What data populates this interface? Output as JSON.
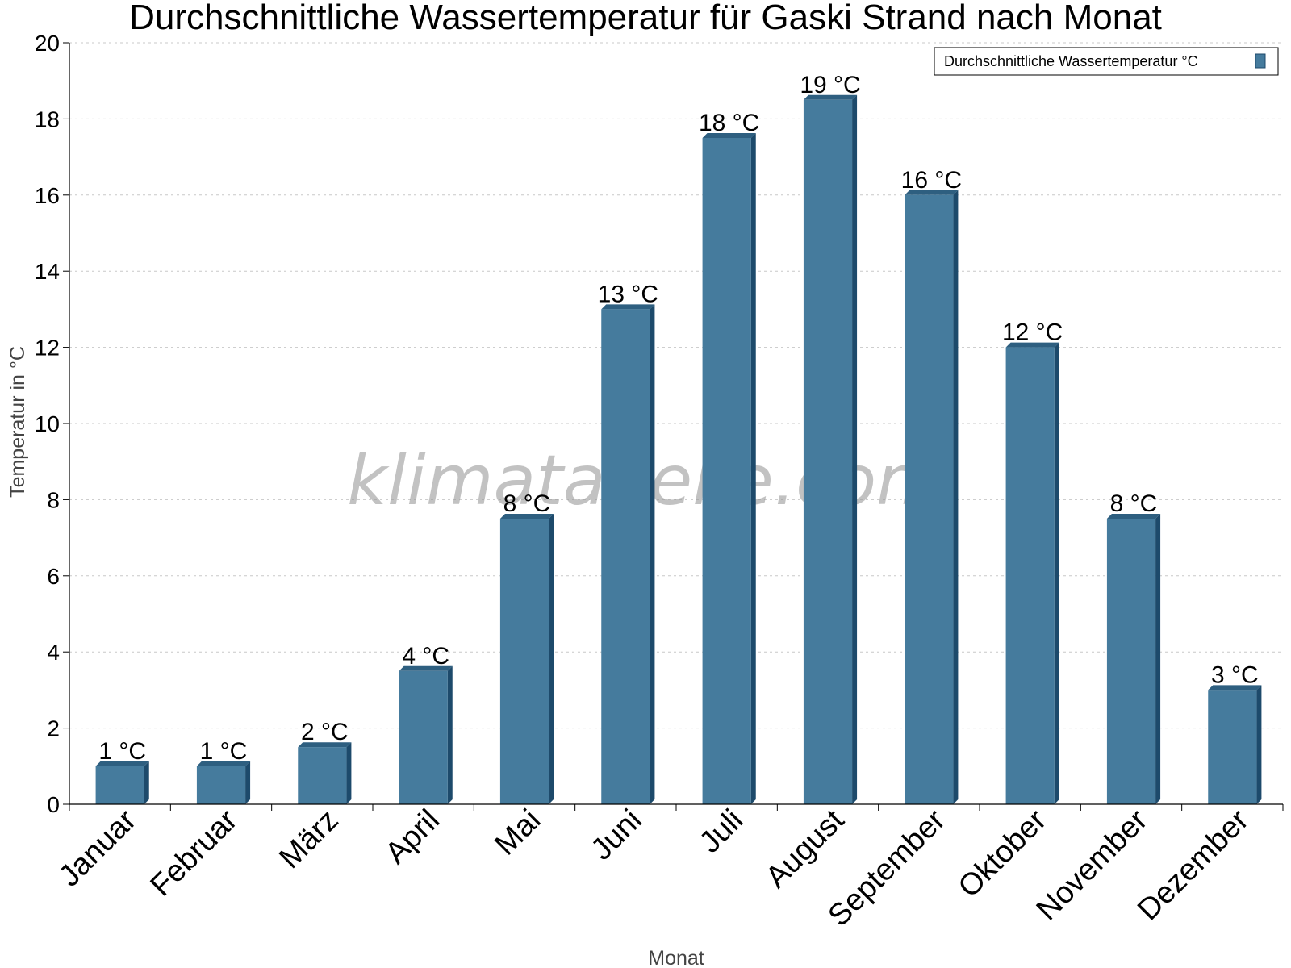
{
  "colors": {
    "bar": "#457b9d",
    "bar_top": "#2e5f80",
    "bar_side": "#1d4a6b",
    "grid": "#c8c8c8",
    "axis": "#000000"
  },
  "watermark": "klimatabelle.com",
  "chart_data": {
    "type": "bar",
    "title": "Durchschnittliche Wassertemperatur für Gaski Strand nach Monat",
    "xlabel": "Monat",
    "ylabel": "Temperatur in °C",
    "ylim": [
      0,
      20
    ],
    "yticks": [
      0,
      2,
      4,
      6,
      8,
      10,
      12,
      14,
      16,
      18,
      20
    ],
    "grid": true,
    "legend_position": "top-right",
    "categories": [
      "Januar",
      "Februar",
      "März",
      "April",
      "Mai",
      "Juni",
      "Juli",
      "August",
      "September",
      "Oktober",
      "November",
      "Dezember"
    ],
    "series": [
      {
        "name": "Durchschnittliche Wassertemperatur °C",
        "values": [
          1,
          1,
          1.5,
          3.5,
          7.5,
          13,
          17.5,
          18.5,
          16,
          12,
          7.5,
          3
        ],
        "labels": [
          "1 °C",
          "1 °C",
          "2 °C",
          "4 °C",
          "8 °C",
          "13 °C",
          "18 °C",
          "19 °C",
          "16 °C",
          "12 °C",
          "8 °C",
          "3 °C"
        ]
      }
    ]
  }
}
